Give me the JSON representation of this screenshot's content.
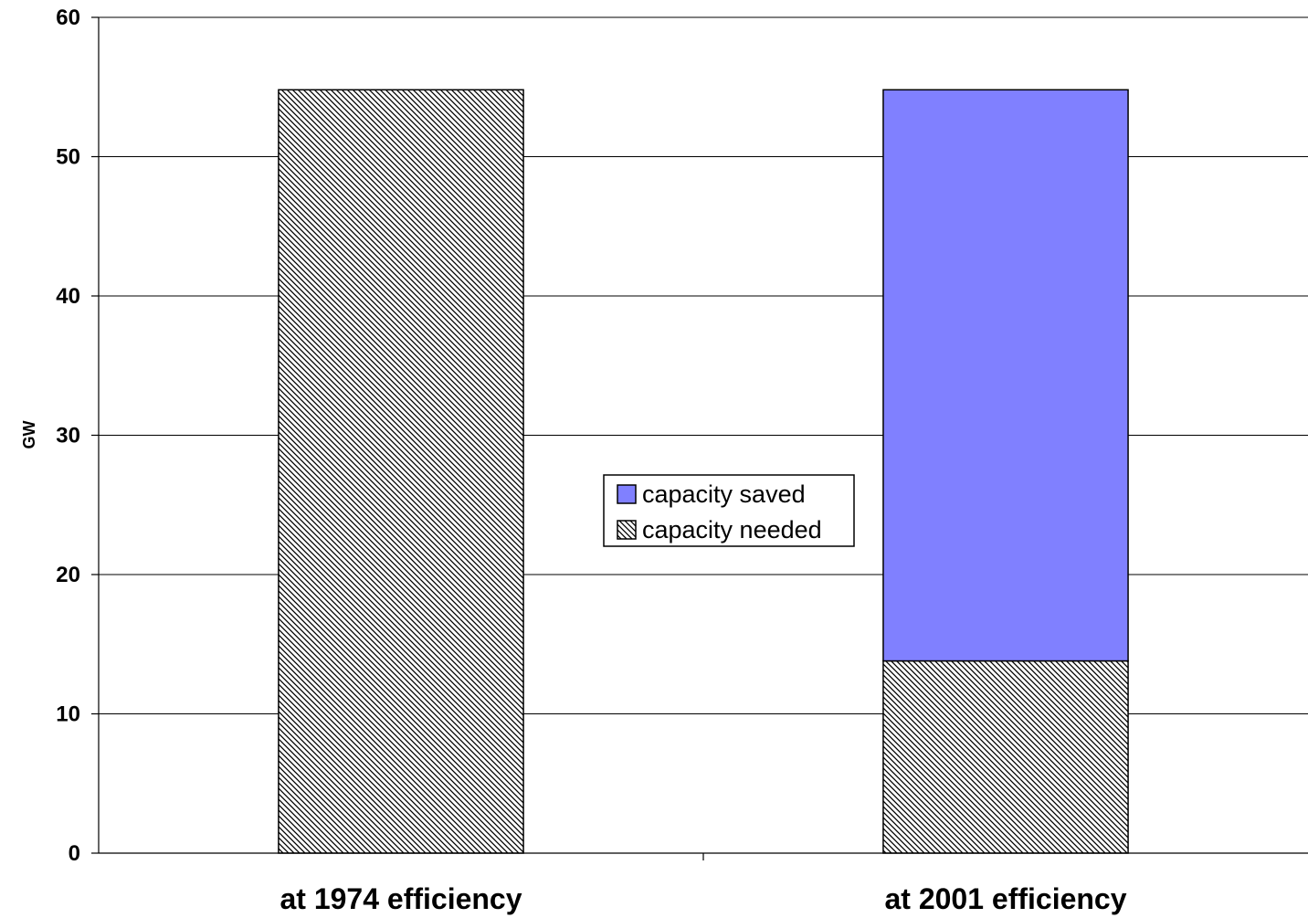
{
  "chart_data": {
    "type": "bar",
    "stacked": true,
    "categories": [
      "at 1974 efficiency",
      "at 2001 efficiency"
    ],
    "series": [
      {
        "name": "capacity needed",
        "values": [
          54.8,
          13.8
        ],
        "color": "#ffffff",
        "pattern": "diagonal-hatch"
      },
      {
        "name": "capacity saved",
        "values": [
          0,
          41.0
        ],
        "color": "#8080ff"
      }
    ],
    "title": "",
    "xlabel": "",
    "ylabel": "GW",
    "ylim": [
      0,
      60
    ],
    "yticks": [
      "0",
      "10",
      "20",
      "30",
      "40",
      "50",
      "60"
    ],
    "grid": true,
    "legend": {
      "position": "center",
      "entries": [
        "capacity saved",
        "capacity needed"
      ]
    }
  }
}
